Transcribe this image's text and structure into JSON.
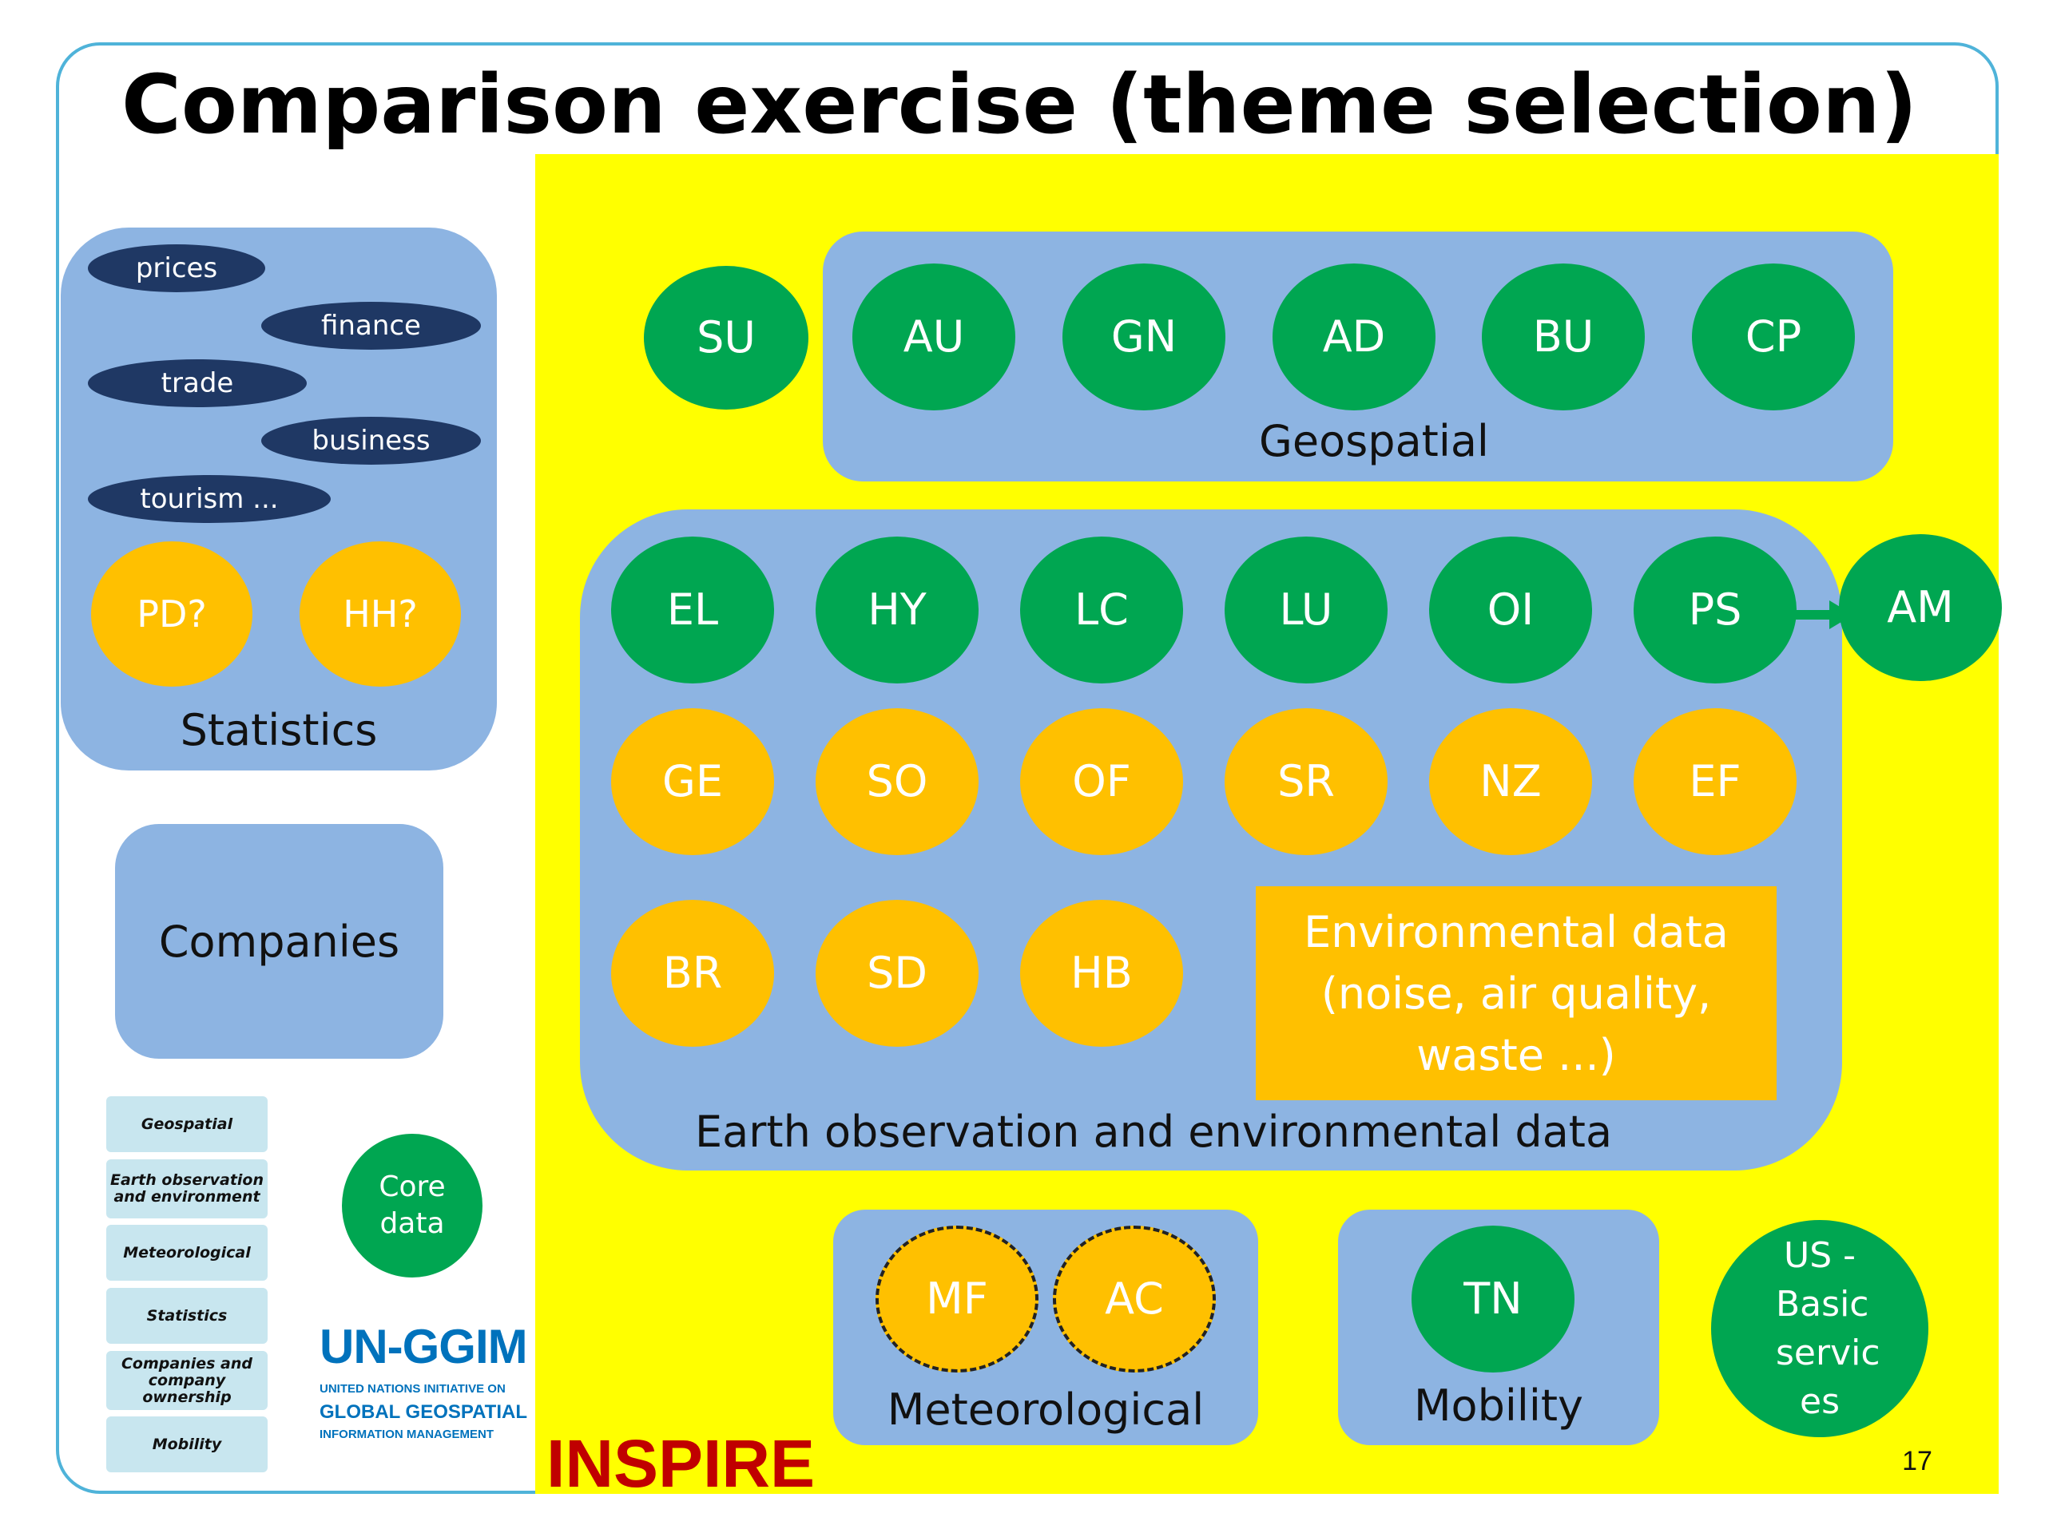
{
  "title": "Comparison exercise (theme selection)",
  "statistics": {
    "label": "Statistics",
    "pills": [
      "prices",
      "finance",
      "trade",
      "business",
      "tourism ..."
    ],
    "circles": [
      "PD?",
      "HH?"
    ]
  },
  "companies": {
    "label": "Companies"
  },
  "legend": {
    "items": [
      "Geospatial",
      "Earth observation and environment",
      "Meteorological",
      "Statistics",
      "Companies and company ownership",
      "Mobility"
    ]
  },
  "core": {
    "label": "Core data"
  },
  "ungg": {
    "logo": "UN-GGIM",
    "line1": "UNITED NATIONS INITIATIVE ON",
    "line2": "GLOBAL GEOSPATIAL",
    "line3": "INFORMATION MANAGEMENT"
  },
  "inspire": {
    "label": "INSPIRE"
  },
  "su": "SU",
  "geospatial": {
    "label": "Geospatial",
    "themes": [
      "AU",
      "GN",
      "AD",
      "BU",
      "CP"
    ]
  },
  "earth": {
    "label": "Earth observation and environmental data",
    "row1": [
      "EL",
      "HY",
      "LC",
      "LU",
      "OI",
      "PS"
    ],
    "row2": [
      "GE",
      "SO",
      "OF",
      "SR",
      "NZ",
      "EF"
    ],
    "row3": [
      "BR",
      "SD",
      "HB"
    ],
    "env_lines": [
      "Environmental data",
      "(noise, air quality,",
      "waste ...)"
    ]
  },
  "am": "AM",
  "meteorological": {
    "label": "Meteorological",
    "themes": [
      "MF",
      "AC"
    ]
  },
  "mobility": {
    "label": "Mobility",
    "themes": [
      "TN"
    ]
  },
  "us": {
    "label": "US - Basic servic es"
  },
  "page_number": "17",
  "colors": {
    "green": "#00a651",
    "orange": "#ffc000",
    "panel": "#8db4e2",
    "yellow": "#ffff00",
    "navy": "#1f3864",
    "inspire_red": "#c00000"
  }
}
